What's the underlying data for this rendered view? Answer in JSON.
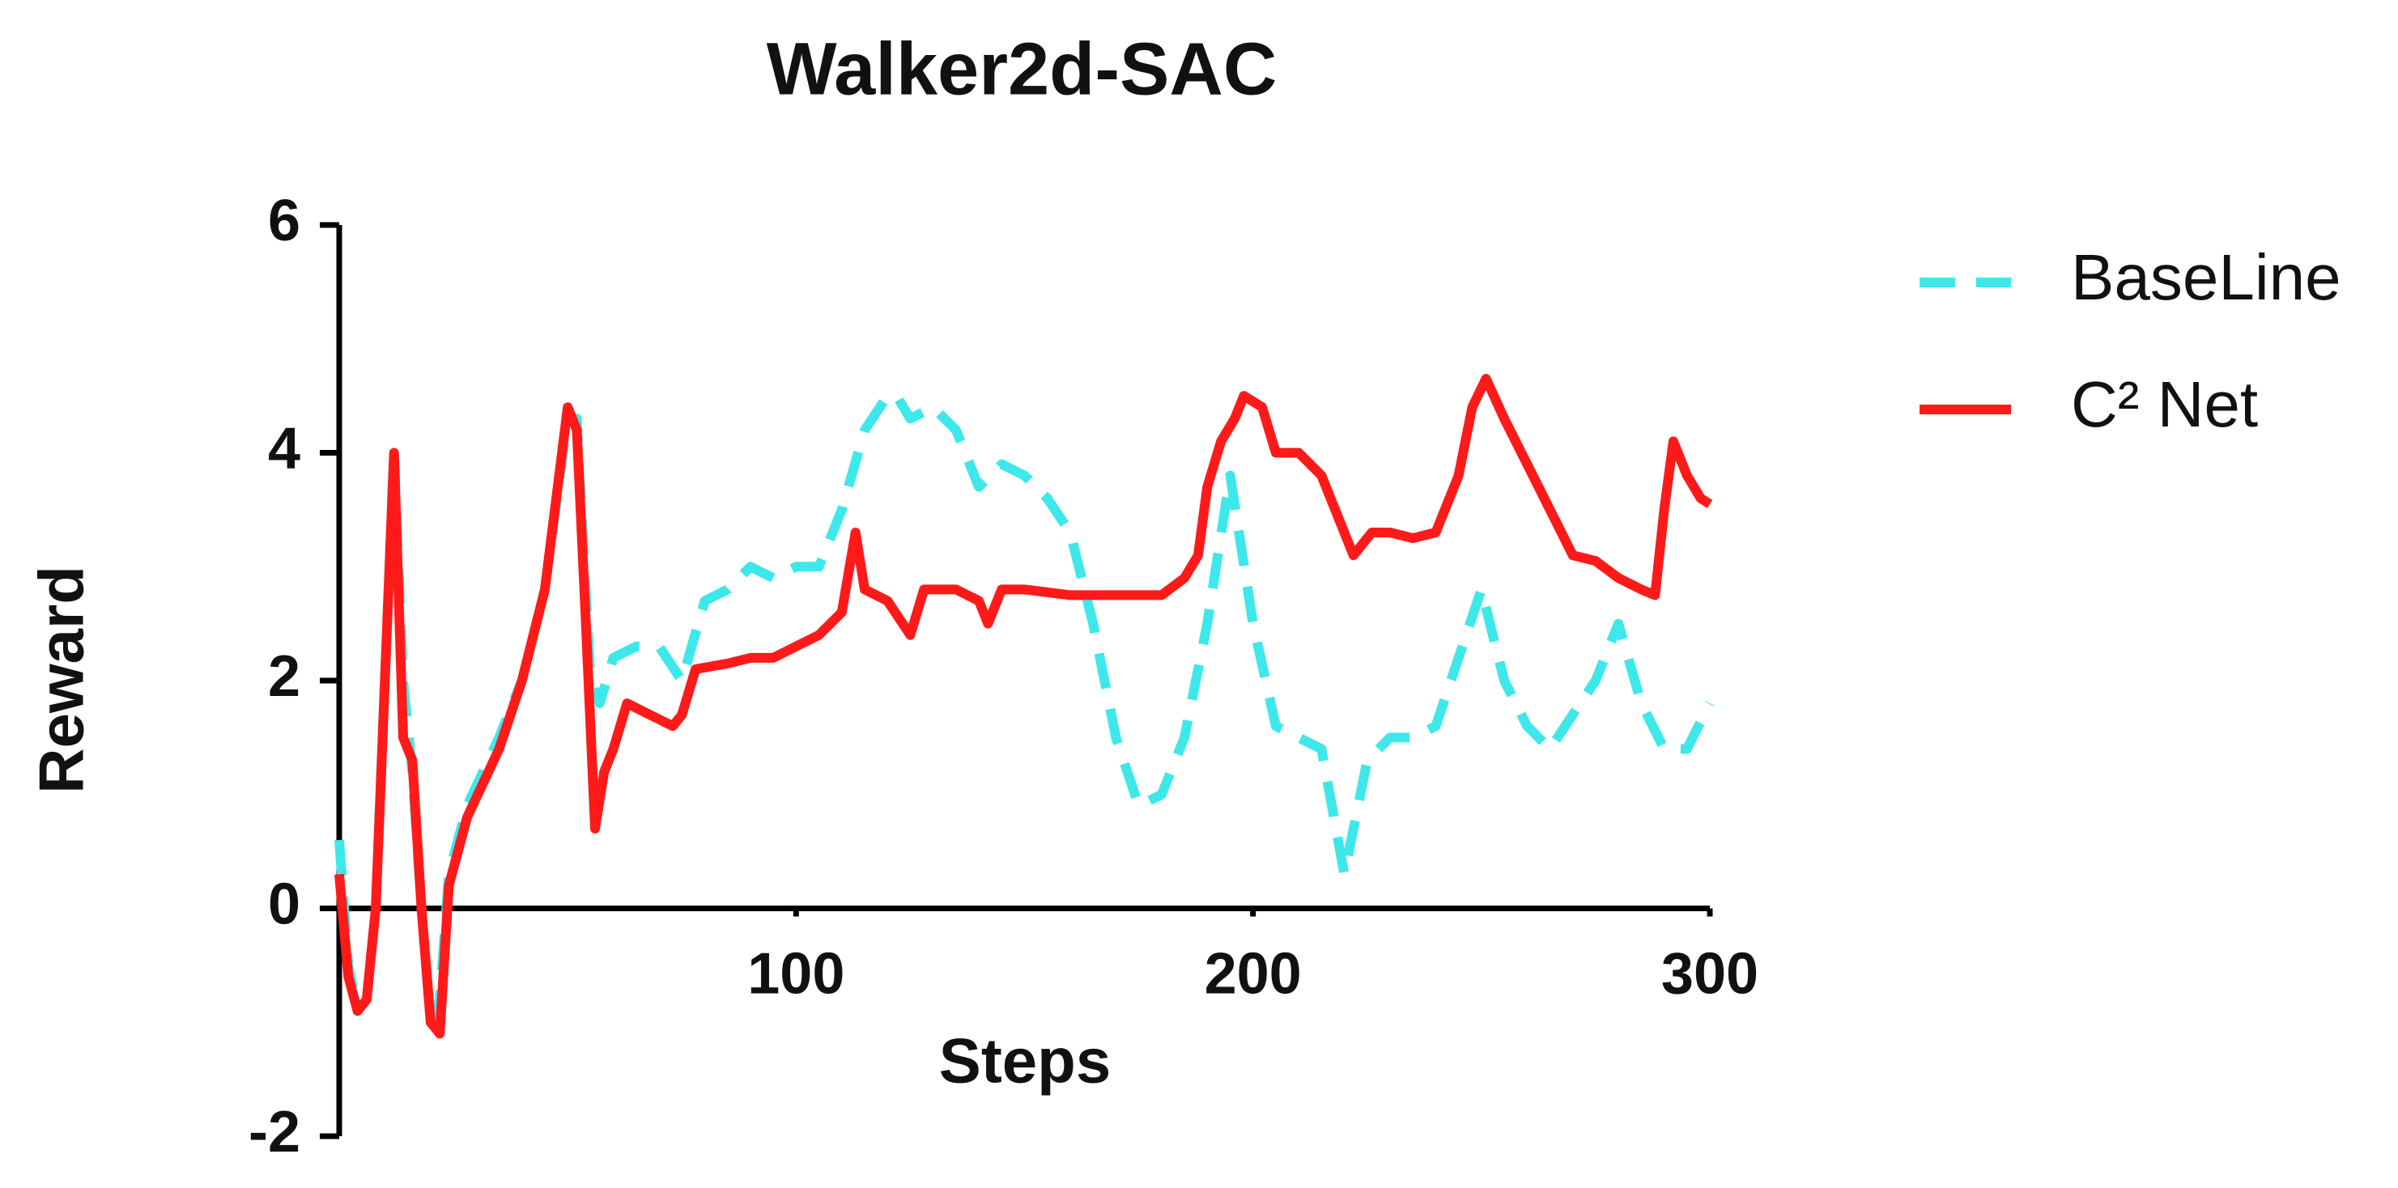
{
  "chart_data": {
    "type": "line",
    "title": "Walker2d-SAC",
    "x_label": "Steps",
    "y_label": "Reward",
    "xlim": [
      0,
      300
    ],
    "xticks": [
      100,
      200,
      300
    ],
    "ylim": [
      -2,
      6
    ],
    "yticks": [
      -2,
      0,
      2,
      4,
      6
    ],
    "grid": false,
    "legend": "right",
    "series": [
      {
        "name": "BaseLine",
        "color": "#3ee8ea",
        "dashed": true,
        "x": [
          0,
          2,
          4,
          6,
          8,
          10,
          12,
          14,
          16,
          18,
          20,
          22,
          24,
          28,
          35,
          40,
          45,
          50,
          52,
          55,
          57,
          60,
          65,
          70,
          75,
          80,
          85,
          90,
          95,
          100,
          105,
          110,
          115,
          120,
          122,
          125,
          130,
          135,
          140,
          145,
          150,
          155,
          160,
          165,
          170,
          175,
          180,
          185,
          190,
          195,
          200,
          205,
          210,
          215,
          220,
          225,
          230,
          235,
          240,
          245,
          250,
          255,
          260,
          265,
          270,
          275,
          280,
          285,
          290,
          295,
          300
        ],
        "values": [
          0.6,
          -0.5,
          -0.9,
          -0.8,
          0,
          2,
          4,
          2,
          1.2,
          0,
          -1,
          -0.8,
          0.3,
          0.9,
          1.5,
          2,
          2.8,
          4.3,
          4.3,
          2,
          1.8,
          2.2,
          2.3,
          2.3,
          2.0,
          2.7,
          2.8,
          3.0,
          2.9,
          3.0,
          3.0,
          3.5,
          4.2,
          4.5,
          4.5,
          4.3,
          4.4,
          4.2,
          3.7,
          3.9,
          3.8,
          3.6,
          3.3,
          2.5,
          1.5,
          0.9,
          1.0,
          1.5,
          2.5,
          3.8,
          2.5,
          1.6,
          1.5,
          1.4,
          0.3,
          1.3,
          1.5,
          1.5,
          1.6,
          2.2,
          2.8,
          2.0,
          1.6,
          1.4,
          1.7,
          2.0,
          2.5,
          1.8,
          1.4,
          1.4,
          1.8
        ]
      },
      {
        "name": "C² Net",
        "color": "#ff1a1a",
        "dashed": false,
        "x": [
          0,
          2,
          4,
          6,
          8,
          10,
          12,
          14,
          16,
          18,
          20,
          22,
          24,
          28,
          35,
          40,
          45,
          50,
          52,
          54,
          56,
          58,
          60,
          63,
          68,
          73,
          75,
          78,
          85,
          90,
          95,
          100,
          105,
          110,
          113,
          115,
          120,
          125,
          128,
          135,
          140,
          142,
          145,
          150,
          160,
          170,
          180,
          185,
          188,
          190,
          193,
          196,
          198,
          202,
          205,
          210,
          215,
          218,
          222,
          226,
          230,
          235,
          240,
          245,
          248,
          251,
          255,
          260,
          265,
          270,
          275,
          280,
          285,
          288,
          290,
          292,
          295,
          298,
          300
        ],
        "values": [
          0.3,
          -0.6,
          -0.9,
          -0.8,
          0,
          2,
          4,
          1.5,
          1.3,
          0,
          -1,
          -1.1,
          0.2,
          0.8,
          1.4,
          2,
          2.8,
          4.4,
          4.2,
          2.5,
          0.7,
          1.2,
          1.4,
          1.8,
          1.7,
          1.6,
          1.7,
          2.1,
          2.15,
          2.2,
          2.2,
          2.3,
          2.4,
          2.6,
          3.3,
          2.8,
          2.7,
          2.4,
          2.8,
          2.8,
          2.7,
          2.5,
          2.8,
          2.8,
          2.75,
          2.75,
          2.75,
          2.9,
          3.1,
          3.7,
          4.1,
          4.3,
          4.5,
          4.4,
          4.0,
          4.0,
          3.8,
          3.5,
          3.1,
          3.3,
          3.3,
          3.25,
          3.3,
          3.8,
          4.4,
          4.65,
          4.3,
          3.9,
          3.5,
          3.1,
          3.05,
          2.9,
          2.8,
          2.75,
          3.5,
          4.1,
          3.8,
          3.6,
          3.55
        ]
      }
    ]
  }
}
